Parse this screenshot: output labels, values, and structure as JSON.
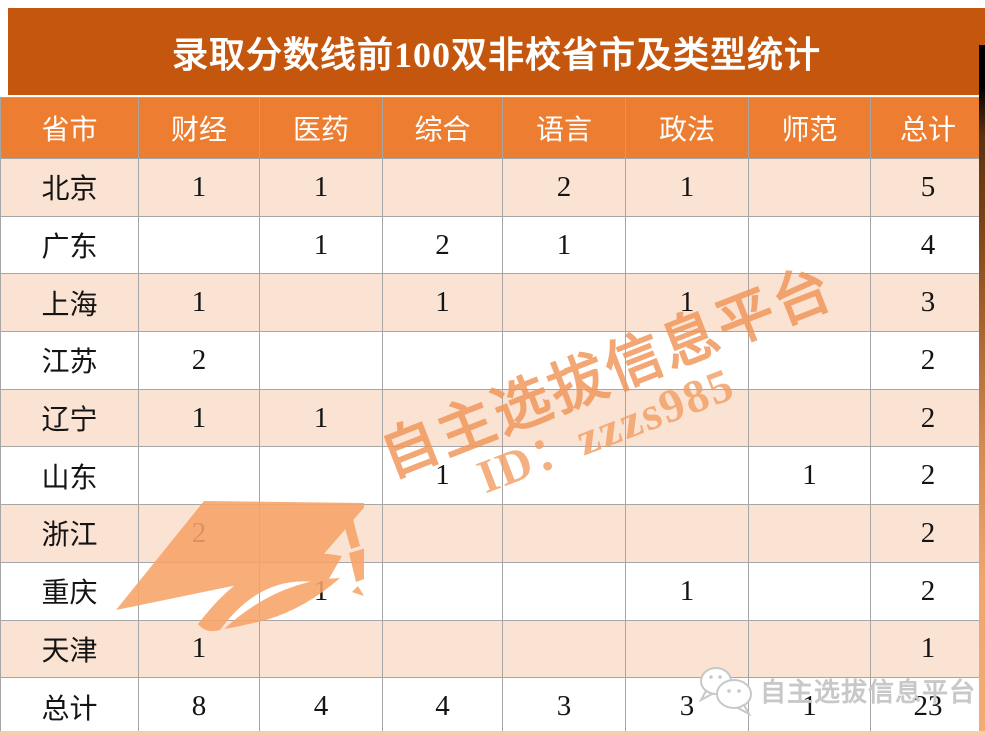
{
  "title": "录取分数线前100双非校省市及类型统计",
  "colors": {
    "banner_bg": "#c5560e",
    "header_bg": "#ed7d31",
    "row_alt_bg": "#fbe3d4",
    "row_bg": "#ffffff",
    "border": "#a6a6a6",
    "watermark_orange": "#ef9455",
    "logo_gray": "#c8c8c8"
  },
  "table": {
    "headers": [
      "省市",
      "财经",
      "医药",
      "综合",
      "语言",
      "政法",
      "师范",
      "总计"
    ],
    "rows": [
      [
        "北京",
        "1",
        "1",
        "",
        "2",
        "1",
        "",
        "5"
      ],
      [
        "广东",
        "",
        "1",
        "2",
        "1",
        "",
        "",
        "4"
      ],
      [
        "上海",
        "1",
        "",
        "1",
        "",
        "1",
        "",
        "3"
      ],
      [
        "江苏",
        "2",
        "",
        "",
        "",
        "",
        "",
        "2"
      ],
      [
        "辽宁",
        "1",
        "1",
        "",
        "",
        "",
        "",
        "2"
      ],
      [
        "山东",
        "",
        "",
        "1",
        "",
        "",
        "1",
        "2"
      ],
      [
        "浙江",
        "2",
        "",
        "",
        "",
        "",
        "",
        "2"
      ],
      [
        "重庆",
        "",
        "1",
        "",
        "",
        "1",
        "",
        "2"
      ],
      [
        "天津",
        "1",
        "",
        "",
        "",
        "",
        "",
        "1"
      ],
      [
        "总计",
        "8",
        "4",
        "4",
        "3",
        "3",
        "1",
        "23"
      ]
    ]
  },
  "watermarks": {
    "diagonal_line1": "自主选拔信息平台",
    "diagonal_line2": "ID：zzzs985",
    "logo_text": "自主选拔信息平台",
    "cap_icon": "graduation-cap-icon",
    "bubbles_icon": "chat-bubbles-icon"
  },
  "chart_data": {
    "type": "table",
    "title": "录取分数线前100双非校省市及类型统计",
    "columns": [
      "省市",
      "财经",
      "医药",
      "综合",
      "语言",
      "政法",
      "师范",
      "总计"
    ],
    "rows": [
      [
        "北京",
        1,
        1,
        null,
        2,
        1,
        null,
        5
      ],
      [
        "广东",
        null,
        1,
        2,
        1,
        null,
        null,
        4
      ],
      [
        "上海",
        1,
        null,
        1,
        null,
        1,
        null,
        3
      ],
      [
        "江苏",
        2,
        null,
        null,
        null,
        null,
        null,
        2
      ],
      [
        "辽宁",
        1,
        1,
        null,
        null,
        null,
        null,
        2
      ],
      [
        "山东",
        null,
        null,
        1,
        null,
        null,
        1,
        2
      ],
      [
        "浙江",
        2,
        null,
        null,
        null,
        null,
        null,
        2
      ],
      [
        "重庆",
        null,
        1,
        null,
        null,
        1,
        null,
        2
      ],
      [
        "天津",
        1,
        null,
        null,
        null,
        null,
        null,
        1
      ],
      [
        "总计",
        8,
        4,
        4,
        3,
        3,
        1,
        23
      ]
    ]
  }
}
